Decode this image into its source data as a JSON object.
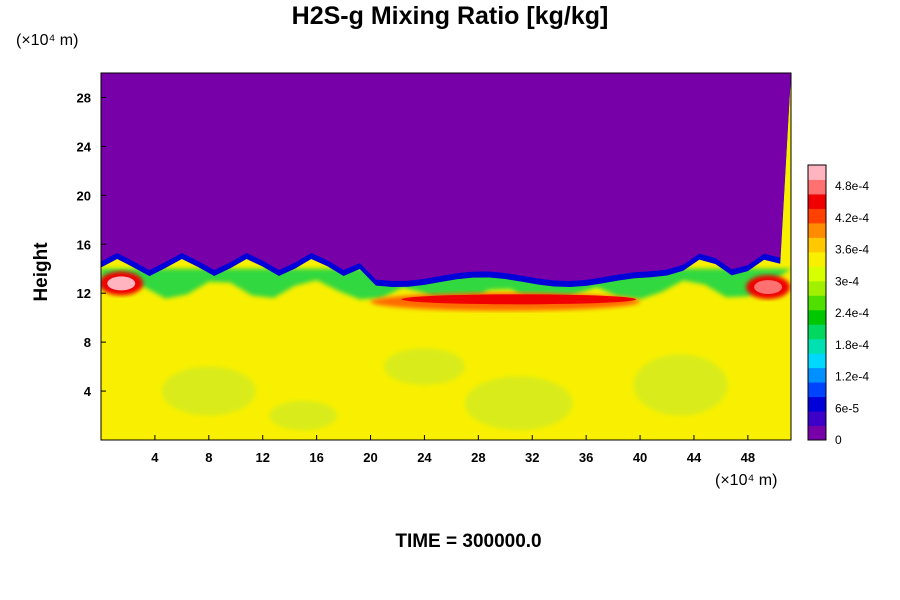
{
  "chart_data": {
    "type": "heatmap",
    "title": "H2S-g Mixing Ratio [kg/kg]",
    "ylabel": "Height",
    "x_unit": "(×10⁴ m)",
    "y_unit": "(×10⁴ m)",
    "xlim": [
      0,
      51.2
    ],
    "ylim": [
      0,
      30
    ],
    "x_ticks": [
      "4",
      "8",
      "12",
      "16",
      "20",
      "24",
      "28",
      "32",
      "36",
      "40",
      "44",
      "48"
    ],
    "y_ticks": [
      "4",
      "8",
      "12",
      "16",
      "20",
      "24",
      "28"
    ],
    "x_tick_values": [
      4,
      8,
      12,
      16,
      20,
      24,
      28,
      32,
      36,
      40,
      44,
      48
    ],
    "y_tick_values": [
      4,
      8,
      12,
      16,
      20,
      24,
      28
    ],
    "colorbar": {
      "min": 0,
      "max": 0.00052,
      "tick_labels": [
        "0",
        "6e-5",
        "1.2e-4",
        "1.8e-4",
        "2.4e-4",
        "3e-4",
        "3.6e-4",
        "4.2e-4",
        "4.8e-4"
      ],
      "tick_values": [
        0,
        6e-05,
        0.00012,
        0.00018,
        0.00024,
        0.0003,
        0.00036,
        0.00042,
        0.00048
      ],
      "colors": [
        "#7800a8",
        "#3c00c8",
        "#0000d8",
        "#0044ff",
        "#0090ff",
        "#00d8ff",
        "#00e0b0",
        "#00d860",
        "#00c800",
        "#50e000",
        "#a0f000",
        "#d8ff00",
        "#f8f000",
        "#ffc800",
        "#ff8c00",
        "#ff4000",
        "#f00000",
        "#ff7070",
        "#ffb4c0"
      ]
    },
    "regions": {
      "background_level": 0.00033,
      "upper_level": 0,
      "boundary_height": 13.5,
      "high_band": {
        "x_from": 20,
        "x_to": 40,
        "height": 11.3,
        "level": 0.00044
      },
      "peak_spots": [
        {
          "x": 1.5,
          "y": 12.8,
          "level": 0.0005
        },
        {
          "x": 49.5,
          "y": 12.5,
          "level": 0.00047
        }
      ]
    }
  },
  "time_label": "TIME = 300000.0"
}
